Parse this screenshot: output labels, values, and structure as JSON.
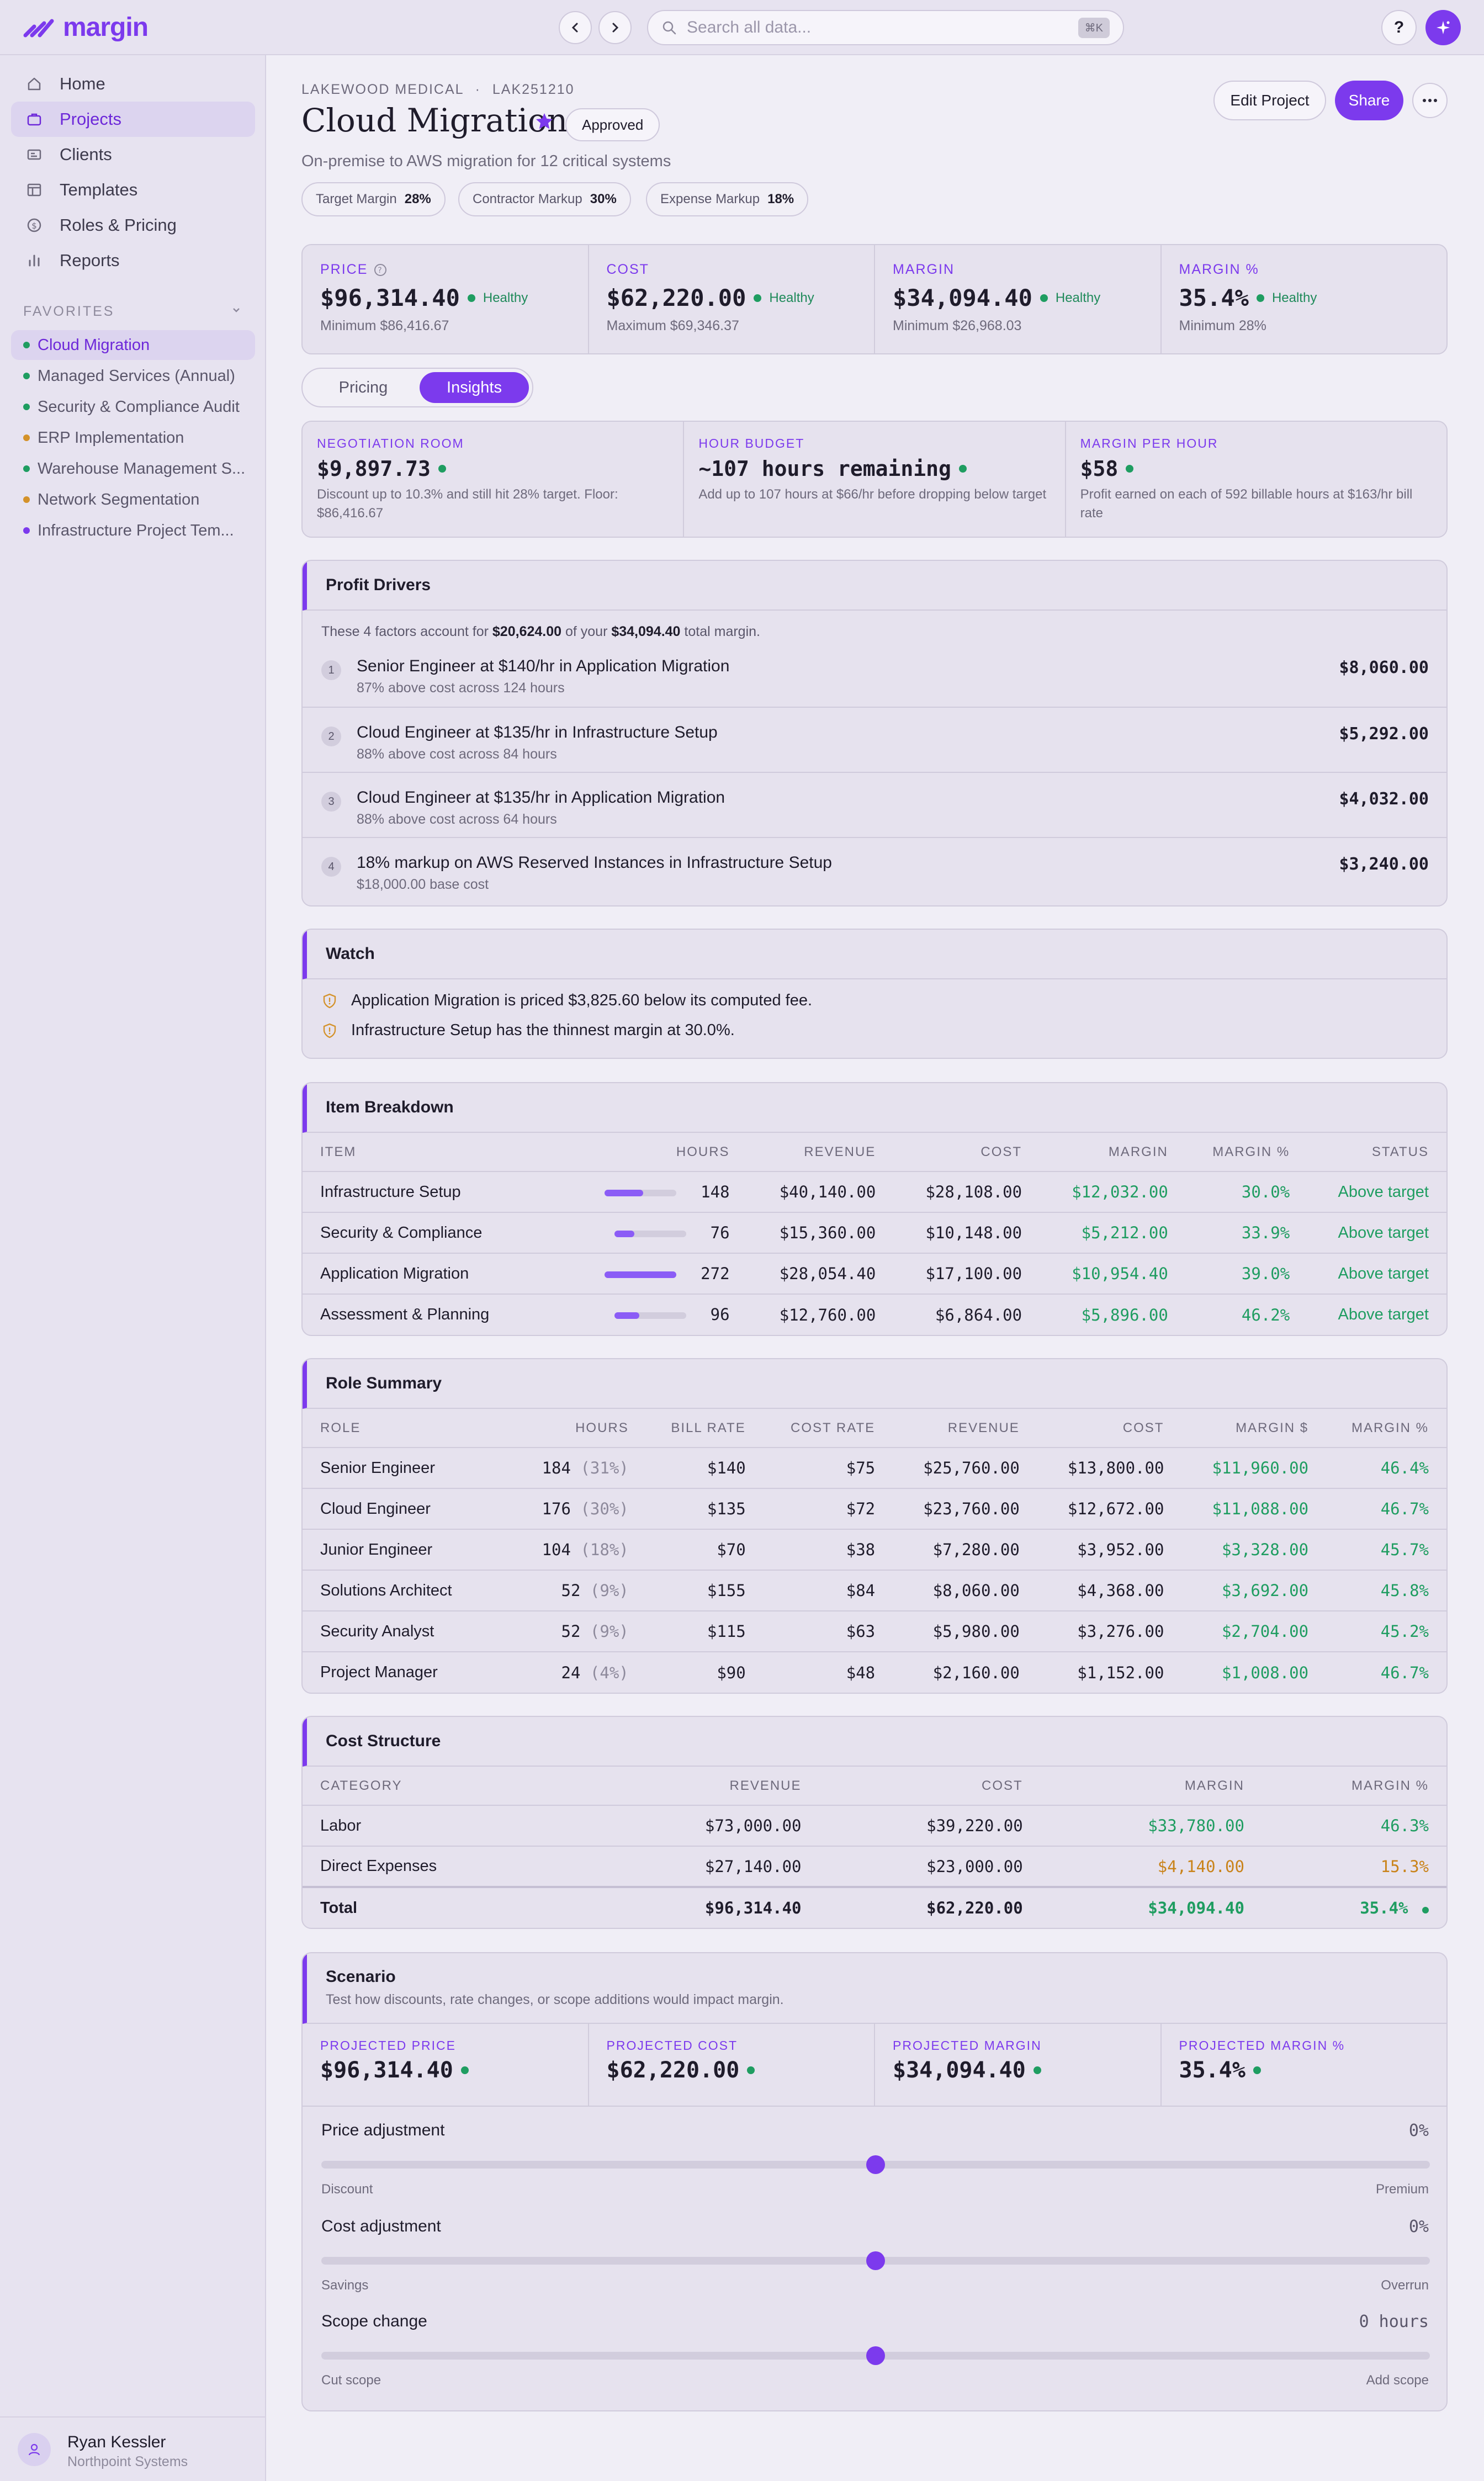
{
  "app": {
    "brand": "margin",
    "accent": "#7c3aed"
  },
  "search": {
    "placeholder": "Search all data...",
    "shortcut": "⌘K"
  },
  "help_label": "?",
  "sidebar": {
    "items": [
      {
        "label": "Home",
        "icon": "home-icon"
      },
      {
        "label": "Projects",
        "icon": "briefcase-icon",
        "active": true
      },
      {
        "label": "Clients",
        "icon": "id-card-icon"
      },
      {
        "label": "Templates",
        "icon": "template-icon"
      },
      {
        "label": "Roles & Pricing",
        "icon": "dollar-circle-icon"
      },
      {
        "label": "Reports",
        "icon": "bar-chart-icon"
      }
    ],
    "favorites_title": "FAVORITES",
    "favorites": [
      {
        "label": "Cloud Migration",
        "color": "#1f9d61",
        "active": true
      },
      {
        "label": "Managed Services (Annual)",
        "color": "#1f9d61"
      },
      {
        "label": "Security & Compliance Audit",
        "color": "#1f9d61"
      },
      {
        "label": "ERP Implementation",
        "color": "#d4922a"
      },
      {
        "label": "Warehouse Management S...",
        "color": "#1f9d61"
      },
      {
        "label": "Network Segmentation",
        "color": "#d4922a"
      },
      {
        "label": "Infrastructure Project Tem...",
        "color": "#7c3aed"
      }
    ],
    "user": {
      "name": "Ryan Kessler",
      "org": "Northpoint Systems"
    }
  },
  "project": {
    "client": "LAKEWOOD MEDICAL",
    "code": "LAK251210",
    "separator": "·",
    "title": "Cloud Migration",
    "status": "Approved",
    "description": "On-premise to AWS migration for 12 critical systems",
    "pills": [
      {
        "label": "Target Margin",
        "value": "28%"
      },
      {
        "label": "Contractor Markup",
        "value": "30%"
      },
      {
        "label": "Expense Markup",
        "value": "18%"
      }
    ],
    "actions": {
      "edit": "Edit Project",
      "share": "Share"
    }
  },
  "kpis": [
    {
      "label": "PRICE",
      "value": "$96,314.40",
      "health": "Healthy",
      "sub": "Minimum $86,416.67",
      "has_info": true
    },
    {
      "label": "COST",
      "value": "$62,220.00",
      "health": "Healthy",
      "sub": "Maximum $69,346.37"
    },
    {
      "label": "MARGIN",
      "value": "$34,094.40",
      "health": "Healthy",
      "sub": "Minimum $26,968.03"
    },
    {
      "label": "MARGIN %",
      "value": "35.4%",
      "health": "Healthy",
      "sub": "Minimum 28%"
    }
  ],
  "tabs": {
    "pricing": "Pricing",
    "insights": "Insights",
    "active": "insights"
  },
  "insights": [
    {
      "label": "NEGOTIATION ROOM",
      "value": "$9,897.73",
      "sub": "Discount up to 10.3% and still hit 28% target. Floor: $86,416.67"
    },
    {
      "label": "HOUR BUDGET",
      "value": "~107 hours remaining",
      "sub": "Add up to 107 hours at $66/hr before dropping below target"
    },
    {
      "label": "MARGIN PER HOUR",
      "value": "$58",
      "sub": "Profit earned on each of 592 billable hours at $163/hr bill rate"
    }
  ],
  "profit_drivers": {
    "title": "Profit Drivers",
    "intro_pre": "These 4 factors account for ",
    "intro_amount": "$20,624.00",
    "intro_mid": " of your ",
    "intro_total": "$34,094.40",
    "intro_post": " total margin.",
    "items": [
      {
        "num": "1",
        "title": "Senior Engineer at $140/hr in Application Migration",
        "sub": "87% above cost across 124 hours",
        "amount": "$8,060.00"
      },
      {
        "num": "2",
        "title": "Cloud Engineer at $135/hr in Infrastructure Setup",
        "sub": "88% above cost across 84 hours",
        "amount": "$5,292.00"
      },
      {
        "num": "3",
        "title": "Cloud Engineer at $135/hr in Application Migration",
        "sub": "88% above cost across 64 hours",
        "amount": "$4,032.00"
      },
      {
        "num": "4",
        "title": "18% markup on AWS Reserved Instances in Infrastructure Setup",
        "sub": "$18,000.00 base cost",
        "amount": "$3,240.00"
      }
    ]
  },
  "watch": {
    "title": "Watch",
    "items": [
      "Application Migration is priced $3,825.60 below its computed fee.",
      "Infrastructure Setup has the thinnest margin at 30.0%."
    ]
  },
  "item_breakdown": {
    "title": "Item Breakdown",
    "headers": [
      "ITEM",
      "HOURS",
      "REVENUE",
      "COST",
      "MARGIN",
      "MARGIN %",
      "STATUS"
    ],
    "rows": [
      {
        "item": "Infrastructure Setup",
        "hours": "148",
        "hours_share": 0.54,
        "revenue": "$40,140.00",
        "cost": "$28,108.00",
        "margin": "$12,032.00",
        "margin_pct": "30.0%",
        "status": "Above target"
      },
      {
        "item": "Security & Compliance",
        "hours": "76",
        "hours_share": 0.28,
        "revenue": "$15,360.00",
        "cost": "$10,148.00",
        "margin": "$5,212.00",
        "margin_pct": "33.9%",
        "status": "Above target"
      },
      {
        "item": "Application Migration",
        "hours": "272",
        "hours_share": 1.0,
        "revenue": "$28,054.40",
        "cost": "$17,100.00",
        "margin": "$10,954.40",
        "margin_pct": "39.0%",
        "status": "Above target"
      },
      {
        "item": "Assessment & Planning",
        "hours": "96",
        "hours_share": 0.35,
        "revenue": "$12,760.00",
        "cost": "$6,864.00",
        "margin": "$5,896.00",
        "margin_pct": "46.2%",
        "status": "Above target"
      }
    ]
  },
  "role_summary": {
    "title": "Role Summary",
    "headers": [
      "ROLE",
      "HOURS",
      "BILL RATE",
      "COST RATE",
      "REVENUE",
      "COST",
      "MARGIN $",
      "MARGIN %"
    ],
    "rows": [
      {
        "role": "Senior Engineer",
        "hours": "184",
        "share": "(31%)",
        "bill": "$140",
        "cost_rate": "$75",
        "revenue": "$25,760.00",
        "cost": "$13,800.00",
        "margin": "$11,960.00",
        "margin_pct": "46.4%"
      },
      {
        "role": "Cloud Engineer",
        "hours": "176",
        "share": "(30%)",
        "bill": "$135",
        "cost_rate": "$72",
        "revenue": "$23,760.00",
        "cost": "$12,672.00",
        "margin": "$11,088.00",
        "margin_pct": "46.7%"
      },
      {
        "role": "Junior Engineer",
        "hours": "104",
        "share": "(18%)",
        "bill": "$70",
        "cost_rate": "$38",
        "revenue": "$7,280.00",
        "cost": "$3,952.00",
        "margin": "$3,328.00",
        "margin_pct": "45.7%"
      },
      {
        "role": "Solutions Architect",
        "hours": "52",
        "share": "(9%)",
        "bill": "$155",
        "cost_rate": "$84",
        "revenue": "$8,060.00",
        "cost": "$4,368.00",
        "margin": "$3,692.00",
        "margin_pct": "45.8%"
      },
      {
        "role": "Security Analyst",
        "hours": "52",
        "share": "(9%)",
        "bill": "$115",
        "cost_rate": "$63",
        "revenue": "$5,980.00",
        "cost": "$3,276.00",
        "margin": "$2,704.00",
        "margin_pct": "45.2%"
      },
      {
        "role": "Project Manager",
        "hours": "24",
        "share": "(4%)",
        "bill": "$90",
        "cost_rate": "$48",
        "revenue": "$2,160.00",
        "cost": "$1,152.00",
        "margin": "$1,008.00",
        "margin_pct": "46.7%"
      }
    ]
  },
  "cost_structure": {
    "title": "Cost Structure",
    "headers": [
      "CATEGORY",
      "REVENUE",
      "COST",
      "MARGIN",
      "MARGIN %"
    ],
    "rows": [
      {
        "category": "Labor",
        "revenue": "$73,000.00",
        "cost": "$39,220.00",
        "margin": "$33,780.00",
        "margin_pct": "46.3%"
      },
      {
        "category": "Direct Expenses",
        "revenue": "$27,140.00",
        "cost": "$23,000.00",
        "margin": "$4,140.00",
        "margin_pct": "15.3%"
      }
    ],
    "total": {
      "category": "Total",
      "revenue": "$96,314.40",
      "cost": "$62,220.00",
      "margin": "$34,094.40",
      "margin_pct": "35.4%"
    }
  },
  "scenario": {
    "title": "Scenario",
    "subtitle": "Test how discounts, rate changes, or scope additions would impact margin.",
    "projections": [
      {
        "label": "PROJECTED PRICE",
        "value": "$96,314.40"
      },
      {
        "label": "PROJECTED COST",
        "value": "$62,220.00"
      },
      {
        "label": "PROJECTED MARGIN",
        "value": "$34,094.40"
      },
      {
        "label": "PROJECTED MARGIN %",
        "value": "35.4%"
      }
    ],
    "sliders": [
      {
        "label": "Price adjustment",
        "value": "0%",
        "min_label": "Discount",
        "max_label": "Premium",
        "position": 0.5
      },
      {
        "label": "Cost adjustment",
        "value": "0%",
        "min_label": "Savings",
        "max_label": "Overrun",
        "position": 0.5
      },
      {
        "label": "Scope change",
        "value": "0 hours",
        "min_label": "Cut scope",
        "max_label": "Add scope",
        "position": 0.5
      }
    ]
  }
}
